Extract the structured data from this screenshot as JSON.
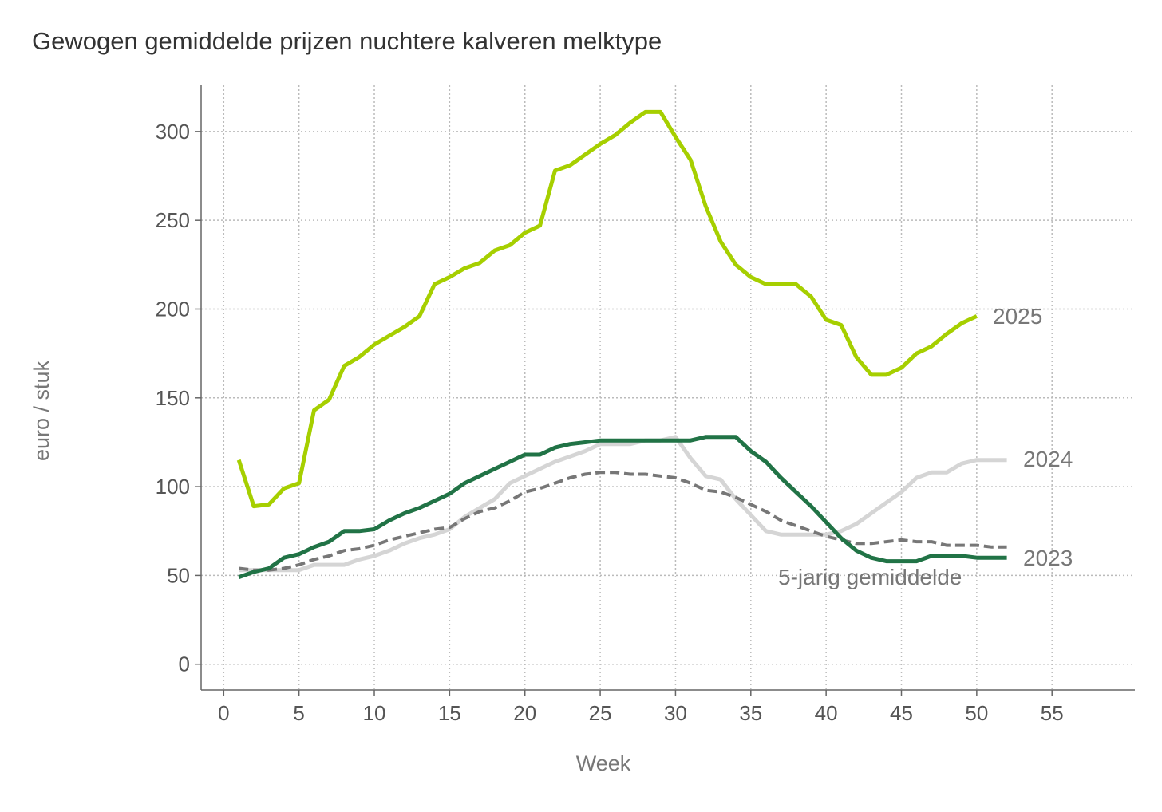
{
  "chart_data": {
    "type": "line",
    "title": "Gewogen gemiddelde prijzen nuchtere kalveren melktype",
    "xlabel": "Week",
    "ylabel": "euro / stuk",
    "xlim": [
      -1.5,
      60.5
    ],
    "ylim": [
      -14.5,
      326
    ],
    "xticks": [
      0,
      5,
      10,
      15,
      20,
      25,
      30,
      35,
      40,
      45,
      50,
      55
    ],
    "yticks": [
      0,
      50,
      100,
      150,
      200,
      250,
      300
    ],
    "grid": true,
    "legend": "inline labels at line ends",
    "series": [
      {
        "name": "2025",
        "color": "#a6cf00",
        "dashed": false,
        "x": [
          1,
          2,
          3,
          4,
          5,
          6,
          7,
          8,
          9,
          10,
          11,
          12,
          13,
          14,
          15,
          16,
          17,
          18,
          19,
          20,
          21,
          22,
          23,
          24,
          25,
          26,
          27,
          28,
          29,
          30,
          31,
          32,
          33,
          34,
          35,
          36,
          37,
          38,
          39,
          40,
          41,
          42,
          43,
          44,
          45,
          46,
          47,
          48,
          49,
          50
        ],
        "y": [
          115,
          89,
          90,
          99,
          102,
          143,
          149,
          168,
          173,
          180,
          185,
          190,
          196,
          214,
          218,
          223,
          226,
          233,
          236,
          243,
          247,
          278,
          281,
          287,
          293,
          298,
          305,
          311,
          311,
          297,
          284,
          258,
          238,
          225,
          218,
          214,
          214,
          214,
          207,
          194,
          191,
          173,
          163,
          163,
          167,
          175,
          179,
          186,
          192,
          196
        ]
      },
      {
        "name": "2024",
        "color": "#d5d5d5",
        "dashed": false,
        "x": [
          1,
          2,
          3,
          4,
          5,
          6,
          7,
          8,
          9,
          10,
          11,
          12,
          13,
          14,
          15,
          16,
          17,
          18,
          19,
          20,
          21,
          22,
          23,
          24,
          25,
          26,
          27,
          28,
          29,
          30,
          31,
          32,
          33,
          34,
          35,
          36,
          37,
          38,
          39,
          40,
          41,
          42,
          43,
          44,
          45,
          46,
          47,
          48,
          49,
          50,
          51,
          52
        ],
        "y": [
          53,
          53,
          53,
          53,
          53,
          56,
          56,
          56,
          59,
          61,
          64,
          68,
          71,
          73,
          76,
          83,
          88,
          93,
          102,
          106,
          110,
          114,
          117,
          120,
          124,
          124,
          124,
          126,
          126,
          128,
          116,
          106,
          104,
          93,
          84,
          75,
          73,
          73,
          73,
          73,
          75,
          79,
          85,
          91,
          97,
          105,
          108,
          108,
          113,
          115,
          115,
          115
        ]
      },
      {
        "name": "2023",
        "color": "#217346",
        "dashed": false,
        "x": [
          1,
          2,
          3,
          4,
          5,
          6,
          7,
          8,
          9,
          10,
          11,
          12,
          13,
          14,
          15,
          16,
          17,
          18,
          19,
          20,
          21,
          22,
          23,
          24,
          25,
          26,
          27,
          28,
          29,
          30,
          31,
          32,
          33,
          34,
          35,
          36,
          37,
          38,
          39,
          40,
          41,
          42,
          43,
          44,
          45,
          46,
          47,
          48,
          49,
          50,
          51,
          52
        ],
        "y": [
          49,
          52,
          54,
          60,
          62,
          66,
          69,
          75,
          75,
          76,
          81,
          85,
          88,
          92,
          96,
          102,
          106,
          110,
          114,
          118,
          118,
          122,
          124,
          125,
          126,
          126,
          126,
          126,
          126,
          126,
          126,
          128,
          128,
          128,
          120,
          114,
          105,
          97,
          89,
          80,
          71,
          64,
          60,
          58,
          58,
          58,
          61,
          61,
          61,
          60,
          60,
          60
        ]
      },
      {
        "name": "5-jarig gemiddelde",
        "color": "#777777",
        "dashed": true,
        "x": [
          1,
          2,
          3,
          4,
          5,
          6,
          7,
          8,
          9,
          10,
          11,
          12,
          13,
          14,
          15,
          16,
          17,
          18,
          19,
          20,
          21,
          22,
          23,
          24,
          25,
          26,
          27,
          28,
          29,
          30,
          31,
          32,
          33,
          34,
          35,
          36,
          37,
          38,
          39,
          40,
          41,
          42,
          43,
          44,
          45,
          46,
          47,
          48,
          49,
          50,
          51,
          52
        ],
        "y": [
          54,
          53,
          53,
          54,
          56,
          59,
          61,
          64,
          65,
          67,
          70,
          72,
          74,
          76,
          77,
          82,
          86,
          88,
          92,
          97,
          99,
          102,
          105,
          107,
          108,
          108,
          107,
          107,
          106,
          105,
          102,
          98,
          97,
          94,
          90,
          86,
          81,
          78,
          75,
          72,
          70,
          68,
          68,
          69,
          70,
          69,
          69,
          67,
          67,
          67,
          66,
          66
        ]
      }
    ]
  }
}
